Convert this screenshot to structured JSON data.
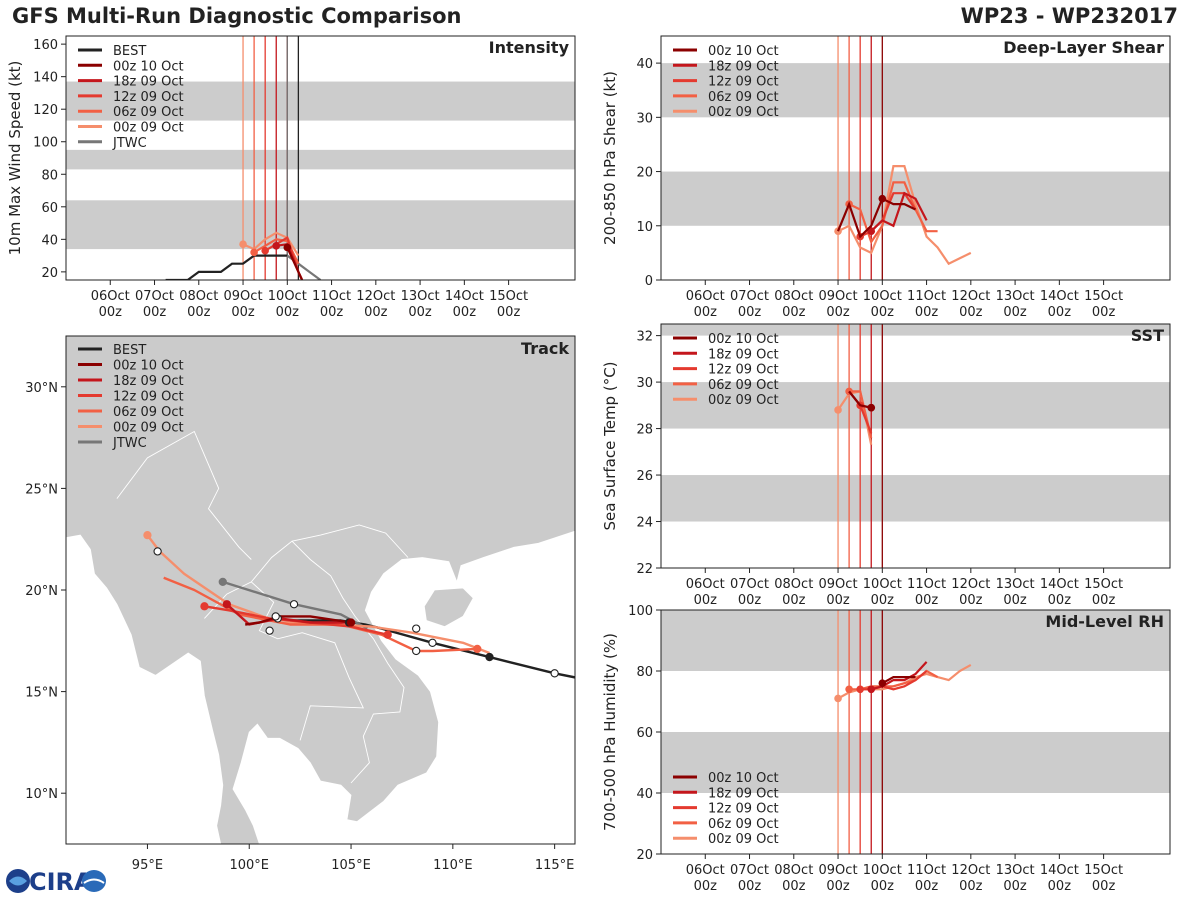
{
  "page": {
    "title_left": "GFS Multi-Run Diagnostic Comparison",
    "title_right": "WP23 - WP232017",
    "logo_text": "CIRA"
  },
  "colors": {
    "best": "#222222",
    "jtwc": "#777777",
    "run_00z10": "#8b0000",
    "run_18z09": "#c4161c",
    "run_12z09": "#e43a2f",
    "run_06z09": "#f26044",
    "run_00z09": "#f58e6c",
    "band": "#cccccc",
    "land": "#cbcbcb",
    "sea": "#ffffff"
  },
  "time_axis": {
    "labels": [
      [
        "06Oct",
        "00z"
      ],
      [
        "07Oct",
        "00z"
      ],
      [
        "08Oct",
        "00z"
      ],
      [
        "09Oct",
        "00z"
      ],
      [
        "10Oct",
        "00z"
      ],
      [
        "11Oct",
        "00z"
      ],
      [
        "12Oct",
        "00z"
      ],
      [
        "13Oct",
        "00z"
      ],
      [
        "14Oct",
        "00z"
      ],
      [
        "15Oct",
        "00z"
      ]
    ],
    "range_hours": [
      -24,
      252
    ],
    "run_init_hours": [
      72,
      78,
      84,
      90,
      96
    ]
  },
  "chart_data": [
    {
      "id": "intensity",
      "type": "line",
      "title": "Intensity",
      "ylabel": "10m Max Wind Speed (kt)",
      "ylim": [
        15,
        165
      ],
      "yticks": [
        20,
        40,
        60,
        80,
        100,
        120,
        140,
        160
      ],
      "bands": [
        [
          34,
          64
        ],
        [
          83,
          95
        ],
        [
          113,
          137
        ]
      ],
      "legend": [
        "BEST",
        "00z 10 Oct",
        "18z 09 Oct",
        "12z 09 Oct",
        "06z 09 Oct",
        "00z 09 Oct",
        "JTWC"
      ],
      "series": [
        {
          "name": "BEST",
          "color_key": "best",
          "x": [
            30,
            36,
            42,
            48,
            54,
            60,
            66,
            72,
            78,
            84,
            90,
            96
          ],
          "y": [
            15,
            15,
            15,
            20,
            20,
            20,
            25,
            25,
            30,
            30,
            30,
            30
          ]
        },
        {
          "name": "JTWC",
          "color_key": "jtwc",
          "x": [
            96,
            102,
            108,
            114
          ],
          "y": [
            30,
            25,
            20,
            15
          ]
        },
        {
          "name": "00z 09 Oct",
          "color_key": "run_00z09",
          "x": [
            72,
            78,
            84,
            90,
            96,
            102
          ],
          "y": [
            37,
            34,
            40,
            44,
            41,
            30
          ],
          "marker": 72
        },
        {
          "name": "06z 09 Oct",
          "color_key": "run_06z09",
          "x": [
            78,
            84,
            90,
            96,
            102
          ],
          "y": [
            32,
            36,
            40,
            39,
            25
          ],
          "marker": 78
        },
        {
          "name": "12z 09 Oct",
          "color_key": "run_12z09",
          "x": [
            84,
            90,
            96,
            102,
            104
          ],
          "y": [
            33,
            37,
            41,
            20,
            15
          ],
          "marker": 84
        },
        {
          "name": "18z 09 Oct",
          "color_key": "run_18z09",
          "x": [
            90,
            96,
            102,
            104
          ],
          "y": [
            36,
            37,
            20,
            15
          ],
          "marker": 90
        },
        {
          "name": "00z 10 Oct",
          "color_key": "run_00z10",
          "x": [
            96,
            102,
            104
          ],
          "y": [
            35,
            20,
            15
          ],
          "marker": 96
        }
      ]
    },
    {
      "id": "shear",
      "type": "line",
      "title": "Deep-Layer Shear",
      "ylabel": "200-850 hPa Shear (kt)",
      "ylim": [
        0,
        45
      ],
      "yticks": [
        0,
        10,
        20,
        30,
        40
      ],
      "bands": [
        [
          10,
          20
        ],
        [
          30,
          40
        ]
      ],
      "legend": [
        "00z 10 Oct",
        "18z 09 Oct",
        "12z 09 Oct",
        "06z 09 Oct",
        "00z 09 Oct"
      ],
      "series": [
        {
          "name": "00z 09 Oct",
          "color_key": "run_00z09",
          "x": [
            72,
            78,
            84,
            90,
            96,
            102,
            108,
            114,
            120,
            126,
            132,
            138,
            144
          ],
          "y": [
            9,
            10,
            6,
            5,
            10,
            21,
            21,
            14,
            8,
            6,
            3,
            4,
            5
          ],
          "marker": 72
        },
        {
          "name": "06z 09 Oct",
          "color_key": "run_06z09",
          "x": [
            78,
            84,
            90,
            96,
            102,
            108,
            114,
            120,
            126
          ],
          "y": [
            14,
            13,
            7,
            10,
            18,
            18,
            13,
            9,
            9
          ],
          "marker": 78
        },
        {
          "name": "12z 09 Oct",
          "color_key": "run_12z09",
          "x": [
            84,
            90,
            96,
            102,
            108,
            114
          ],
          "y": [
            8,
            9,
            11,
            16,
            16,
            13
          ],
          "marker": 84
        },
        {
          "name": "18z 09 Oct",
          "color_key": "run_18z09",
          "x": [
            90,
            96,
            102,
            108,
            114,
            120
          ],
          "y": [
            9,
            11,
            10,
            16,
            15,
            11
          ],
          "marker": 90
        },
        {
          "name": "00z 10 Oct",
          "color_key": "run_00z10",
          "x": [
            72,
            78,
            84,
            90,
            96,
            102,
            108,
            114
          ],
          "y": [
            9,
            14,
            8,
            10,
            15,
            14,
            14,
            13
          ],
          "marker": 96,
          "marker_y": 15
        }
      ]
    },
    {
      "id": "sst",
      "type": "line",
      "title": "SST",
      "ylabel": "Sea Surface Temp (°C)",
      "ylim": [
        22,
        32.5
      ],
      "yticks": [
        22,
        24,
        26,
        28,
        30,
        32
      ],
      "bands": [
        [
          24,
          26
        ],
        [
          28,
          30
        ],
        [
          32,
          33
        ]
      ],
      "legend": [
        "00z 10 Oct",
        "18z 09 Oct",
        "12z 09 Oct",
        "06z 09 Oct",
        "00z 09 Oct"
      ],
      "series": [
        {
          "name": "00z 09 Oct",
          "color_key": "run_00z09",
          "x": [
            72,
            78,
            84,
            90
          ],
          "y": [
            28.8,
            29.5,
            29.6,
            27.3
          ],
          "marker": 72
        },
        {
          "name": "06z 09 Oct",
          "color_key": "run_06z09",
          "x": [
            78,
            84,
            90
          ],
          "y": [
            29.6,
            29.6,
            27.6
          ],
          "marker": 78
        },
        {
          "name": "12z 09 Oct",
          "color_key": "run_12z09",
          "x": [
            78,
            84,
            90
          ],
          "y": [
            29.6,
            29.0,
            27.8
          ],
          "marker": 84
        },
        {
          "name": "18z 09 Oct",
          "color_key": "run_18z09",
          "x": [
            78,
            84,
            90
          ],
          "y": [
            29.6,
            29.0,
            28.9
          ],
          "marker": 90
        },
        {
          "name": "00z 10 Oct",
          "color_key": "run_00z10",
          "x": [
            78,
            84,
            90
          ],
          "y": [
            29.6,
            29.0,
            28.9
          ],
          "marker": 90,
          "marker_y": 28.9
        }
      ]
    },
    {
      "id": "rh",
      "type": "line",
      "title": "Mid-Level RH",
      "ylabel": "700-500 hPa Humidity (%)",
      "ylim": [
        20,
        100
      ],
      "yticks": [
        20,
        40,
        60,
        80,
        100
      ],
      "bands": [
        [
          40,
          60
        ],
        [
          80,
          100
        ]
      ],
      "legend": [
        "00z 10 Oct",
        "18z 09 Oct",
        "12z 09 Oct",
        "06z 09 Oct",
        "00z 09 Oct"
      ],
      "series": [
        {
          "name": "00z 09 Oct",
          "color_key": "run_00z09",
          "x": [
            72,
            78,
            84,
            90,
            96,
            102,
            108,
            114,
            120,
            126,
            132,
            138,
            144
          ],
          "y": [
            71,
            73,
            74,
            74,
            74,
            75,
            76,
            78,
            79,
            78,
            77,
            80,
            82
          ],
          "marker": 72
        },
        {
          "name": "06z 09 Oct",
          "color_key": "run_06z09",
          "x": [
            78,
            84,
            90,
            96,
            102,
            108,
            114,
            120,
            126
          ],
          "y": [
            74,
            74,
            75,
            75,
            75,
            76,
            77,
            80,
            78
          ],
          "marker": 78
        },
        {
          "name": "12z 09 Oct",
          "color_key": "run_12z09",
          "x": [
            84,
            90,
            96,
            102,
            108,
            114,
            120
          ],
          "y": [
            74,
            74,
            75,
            74,
            75,
            77,
            80
          ],
          "marker": 84
        },
        {
          "name": "18z 09 Oct",
          "color_key": "run_18z09",
          "x": [
            90,
            96,
            102,
            108,
            114,
            120
          ],
          "y": [
            74,
            75,
            77,
            77,
            79,
            83
          ],
          "marker": 90
        },
        {
          "name": "00z 10 Oct",
          "color_key": "run_00z10",
          "x": [
            96,
            102,
            108,
            114
          ],
          "y": [
            76,
            78,
            78,
            78
          ],
          "marker": 96
        }
      ]
    },
    {
      "id": "track",
      "type": "scatter",
      "title": "Track",
      "xlim": [
        91,
        116
      ],
      "ylim": [
        7.5,
        32.5
      ],
      "xticks": [
        95,
        100,
        105,
        110,
        115
      ],
      "xtick_labels": [
        "95°E",
        "100°E",
        "105°E",
        "110°E",
        "115°E"
      ],
      "yticks": [
        10,
        15,
        20,
        25,
        30
      ],
      "ytick_labels": [
        "10°N",
        "15°N",
        "20°N",
        "25°N",
        "30°N"
      ],
      "legend": [
        "BEST",
        "00z 10 Oct",
        "18z 09 Oct",
        "12z 09 Oct",
        "06z 09 Oct",
        "00z 09 Oct",
        "JTWC"
      ],
      "series": [
        {
          "name": "BEST",
          "color_key": "best",
          "lon": [
            116,
            115.0,
            111.8,
            109.0,
            106.5,
            105.7,
            104.5,
            102.0
          ],
          "lat": [
            15.7,
            15.9,
            16.7,
            17.4,
            18.1,
            18.3,
            18.5,
            18.5
          ],
          "points": [
            [
              115.0,
              15.9,
              "open"
            ],
            [
              111.8,
              16.7,
              "filled"
            ],
            [
              109.0,
              17.4,
              "open"
            ],
            [
              104.9,
              18.4,
              "filled"
            ],
            [
              101.0,
              18.0,
              "open"
            ]
          ]
        },
        {
          "name": "JTWC",
          "color_key": "jtwc",
          "lon": [
            98.7,
            102.2,
            104.5,
            105.8
          ],
          "lat": [
            20.4,
            19.3,
            18.8,
            18.1
          ],
          "points": [
            [
              98.7,
              20.4,
              "filled"
            ],
            [
              102.2,
              19.3,
              "open"
            ]
          ]
        },
        {
          "name": "00z 09 Oct",
          "color_key": "run_00z09",
          "lon": [
            111.8,
            110.5,
            108.0,
            106.0,
            104.0,
            101.5,
            99.0,
            96.8,
            95.6,
            95.0
          ],
          "lat": [
            16.9,
            17.4,
            17.9,
            18.2,
            18.3,
            18.4,
            19.3,
            20.8,
            21.9,
            22.7
          ],
          "points": [
            [
              95.0,
              22.7,
              "filled"
            ],
            [
              95.5,
              21.9,
              "open"
            ],
            [
              108.2,
              18.1,
              "open"
            ]
          ]
        },
        {
          "name": "06z 09 Oct",
          "color_key": "run_06z09",
          "lon": [
            111.2,
            109.0,
            108.2,
            106.5,
            104.5,
            102.0,
            99.5,
            97.3,
            95.8
          ],
          "lat": [
            17.1,
            17.0,
            17.0,
            17.8,
            18.3,
            18.3,
            18.8,
            20.0,
            20.6
          ],
          "points": [
            [
              111.2,
              17.1,
              "filled"
            ],
            [
              108.2,
              17.0,
              "open"
            ]
          ]
        },
        {
          "name": "12z 09 Oct",
          "color_key": "run_12z09",
          "lon": [
            106.8,
            105.0,
            103.0,
            101.0,
            99.0,
            97.8
          ],
          "lat": [
            17.8,
            18.2,
            18.4,
            18.6,
            19.0,
            19.2
          ],
          "points": [
            [
              106.8,
              17.8,
              "filled"
            ],
            [
              97.8,
              19.2,
              "filled"
            ]
          ]
        },
        {
          "name": "18z 09 Oct",
          "color_key": "run_18z09",
          "lon": [
            105.0,
            103.0,
            101.5,
            100.0,
            98.9
          ],
          "lat": [
            18.4,
            18.4,
            18.6,
            18.3,
            19.3
          ],
          "points": [
            [
              98.9,
              19.3,
              "filled"
            ],
            [
              101.4,
              18.6,
              "open"
            ]
          ]
        },
        {
          "name": "00z 10 Oct",
          "color_key": "run_00z10",
          "lon": [
            105.0,
            103.0,
            101.5,
            100.5,
            99.8
          ],
          "lat": [
            18.4,
            18.7,
            18.7,
            18.4,
            18.3
          ],
          "points": [
            [
              105.0,
              18.4,
              "filled"
            ],
            [
              101.3,
              18.7,
              "open"
            ]
          ]
        }
      ]
    }
  ]
}
